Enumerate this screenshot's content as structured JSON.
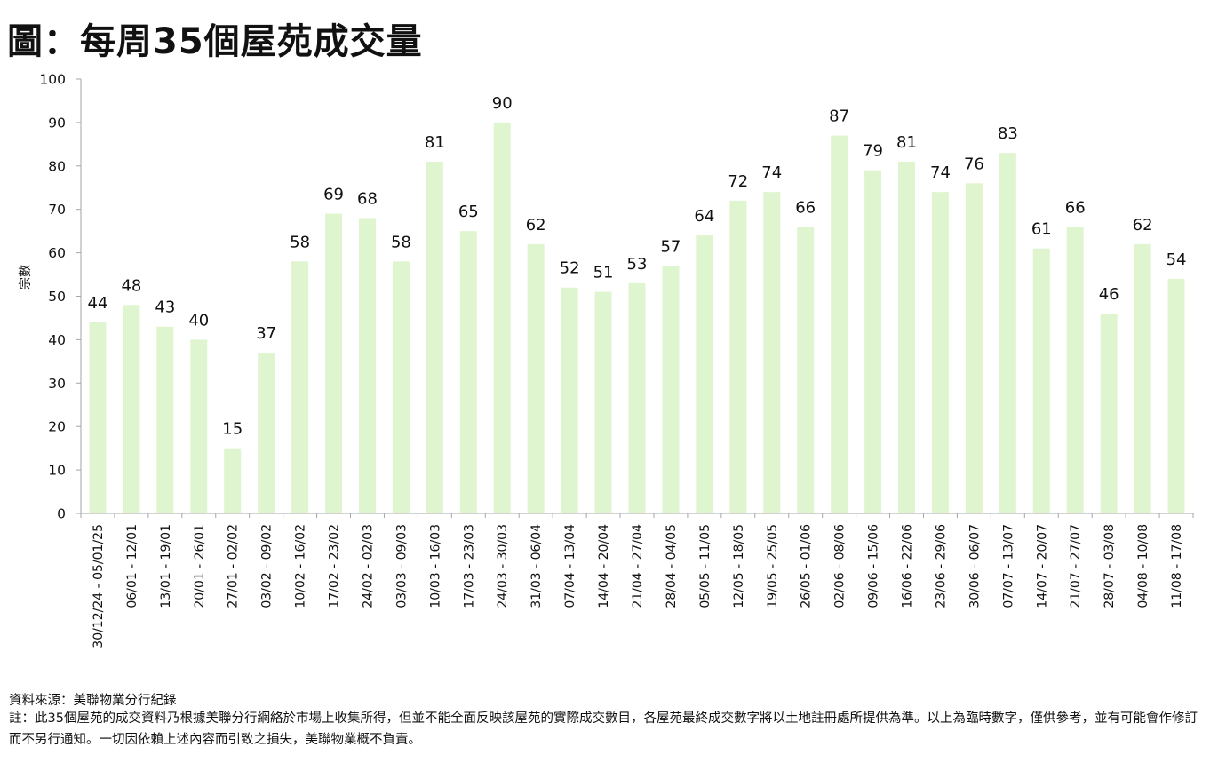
{
  "title": "圖：每周35個屋苑成交量",
  "source": "資料來源：美聯物業分行紀錄",
  "note": "註：此35個屋苑的成交資料乃根據美聯分行網絡於市場上收集所得，但並不能全面反映該屋苑的實際成交數目，各屋苑最終成交數字將以土地註冊處所提供為準。以上為臨時數字，僅供參考，並有可能會作修訂而不另行通知。一切因依賴上述內容而引致之損失，美聯物業概不負責。",
  "chart_data": {
    "type": "bar",
    "title": "圖：每周35個屋苑成交量",
    "xlabel": "",
    "ylabel": "宗數",
    "ylim": [
      0,
      100
    ],
    "yticks": [
      0,
      10,
      20,
      30,
      40,
      50,
      60,
      70,
      80,
      90,
      100
    ],
    "grid": false,
    "legend": "none",
    "bar_color": "#dff5cf",
    "categories": [
      "30/12/24 - 05/01/25",
      "06/01 - 12/01",
      "13/01 - 19/01",
      "20/01 - 26/01",
      "27/01 - 02/02",
      "03/02 - 09/02",
      "10/02 - 16/02",
      "17/02 - 23/02",
      "24/02 - 02/03",
      "03/03 - 09/03",
      "10/03 - 16/03",
      "17/03 - 23/03",
      "24/03 - 30/03",
      "31/03 - 06/04",
      "07/04 - 13/04",
      "14/04 - 20/04",
      "21/04 - 27/04",
      "28/04 - 04/05",
      "05/05 - 11/05",
      "12/05 - 18/05",
      "19/05 - 25/05",
      "26/05 - 01/06",
      "02/06 - 08/06",
      "09/06 - 15/06",
      "16/06 - 22/06",
      "23/06 - 29/06",
      "30/06 - 06/07",
      "07/07 - 13/07",
      "14/07 - 20/07",
      "21/07 - 27/07",
      "28/07 - 03/08",
      "04/08 - 10/08",
      "11/08 - 17/08"
    ],
    "values": [
      44,
      48,
      43,
      40,
      15,
      37,
      58,
      69,
      68,
      58,
      81,
      65,
      90,
      62,
      52,
      51,
      53,
      57,
      64,
      72,
      74,
      66,
      87,
      79,
      81,
      74,
      76,
      83,
      61,
      66,
      46,
      62,
      54
    ]
  }
}
